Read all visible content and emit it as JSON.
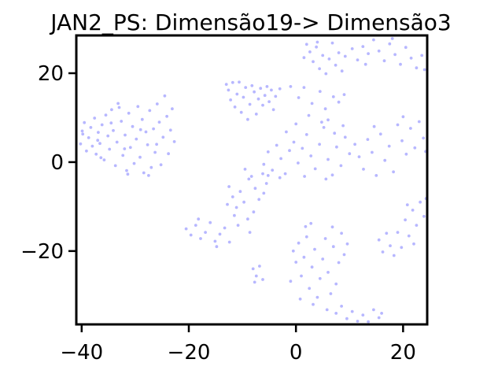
{
  "chart_data": {
    "type": "scatter",
    "title": "JAN2_PS: Dimensão19-> Dimensão3",
    "xlabel": "",
    "ylabel": "",
    "xlim": [
      -41,
      24.5
    ],
    "ylim": [
      -36.5,
      28.5
    ],
    "xticks": [
      -40,
      -20,
      0,
      20
    ],
    "xtick_labels": [
      "−40",
      "−20",
      "0",
      "20"
    ],
    "yticks": [
      -20,
      0,
      20
    ],
    "ytick_labels": [
      "−20",
      "0",
      "20"
    ],
    "grid": false,
    "legend": "none",
    "marker_color": "#7b7bff",
    "marker_opacity": 0.55,
    "series": [
      {
        "points": [
          [
            -40.2,
            4.1
          ],
          [
            -39.8,
            6.3
          ],
          [
            -39.5,
            8.9
          ],
          [
            -39.1,
            2.5
          ],
          [
            -38.7,
            5.5
          ],
          [
            -38.3,
            7.8
          ],
          [
            -38.0,
            3.6
          ],
          [
            -37.6,
            9.9
          ],
          [
            -37.3,
            1.8
          ],
          [
            -36.9,
            6.7
          ],
          [
            -36.6,
            4.2
          ],
          [
            -36.2,
            8.4
          ],
          [
            -35.8,
            0.5
          ],
          [
            -35.5,
            10.6
          ],
          [
            -35.1,
            5.9
          ],
          [
            -34.8,
            2.9
          ],
          [
            -34.4,
            11.8
          ],
          [
            -34.1,
            7.1
          ],
          [
            -33.7,
            -0.8
          ],
          [
            -33.4,
            4.5
          ],
          [
            -33.0,
            12.3
          ],
          [
            -32.6,
            9.2
          ],
          [
            -32.3,
            1.5
          ],
          [
            -31.9,
            6.1
          ],
          [
            -31.6,
            -1.9
          ],
          [
            -31.2,
            11.0
          ],
          [
            -30.9,
            3.3
          ],
          [
            -30.5,
            8.0
          ],
          [
            -30.2,
            -0.3
          ],
          [
            -29.8,
            5.2
          ],
          [
            -29.5,
            12.5
          ],
          [
            -29.1,
            1.1
          ],
          [
            -28.7,
            9.6
          ],
          [
            -28.4,
            -2.4
          ],
          [
            -28.0,
            6.8
          ],
          [
            -27.7,
            3.9
          ],
          [
            -27.3,
            11.6
          ],
          [
            -27.0,
            -1.2
          ],
          [
            -26.6,
            7.5
          ],
          [
            -26.3,
            2.2
          ],
          [
            -25.9,
            13.1
          ],
          [
            -25.5,
            9.0
          ],
          [
            -25.2,
            -0.6
          ],
          [
            -24.8,
            5.6
          ],
          [
            -24.5,
            14.9
          ],
          [
            -24.1,
            10.3
          ],
          [
            -23.8,
            1.9
          ],
          [
            -23.4,
            7.2
          ],
          [
            -23.1,
            12.0
          ],
          [
            -22.7,
            4.6
          ],
          [
            -39.9,
            7.0
          ],
          [
            -37.0,
            4.9
          ],
          [
            -34.5,
            8.8
          ],
          [
            -32.0,
            3.0
          ],
          [
            -29.0,
            7.3
          ],
          [
            -26.0,
            4.0
          ],
          [
            -31.4,
            -2.7
          ],
          [
            -27.5,
            -3.0
          ],
          [
            -36.4,
            1.0
          ],
          [
            -33.2,
            13.2
          ],
          [
            -13.0,
            17.5
          ],
          [
            -12.6,
            16.2
          ],
          [
            -12.2,
            14.0
          ],
          [
            -11.8,
            17.9
          ],
          [
            -11.4,
            12.4
          ],
          [
            -11.0,
            15.3
          ],
          [
            -10.6,
            18.0
          ],
          [
            -10.2,
            11.2
          ],
          [
            -9.8,
            14.6
          ],
          [
            -9.4,
            16.8
          ],
          [
            -9.0,
            9.6
          ],
          [
            -8.6,
            13.0
          ],
          [
            -8.2,
            17.2
          ],
          [
            -7.8,
            15.8
          ],
          [
            -7.4,
            10.8
          ],
          [
            -7.0,
            14.2
          ],
          [
            -6.6,
            16.6
          ],
          [
            -6.2,
            12.8
          ],
          [
            -5.8,
            15.0
          ],
          [
            -5.4,
            17.0
          ],
          [
            -5.0,
            13.6
          ],
          [
            -4.6,
            16.2
          ],
          [
            -4.2,
            11.8
          ],
          [
            -3.8,
            14.8
          ],
          [
            -3.0,
            16.5
          ],
          [
            -1.0,
            17.0
          ],
          [
            0.5,
            14.5
          ],
          [
            1.5,
            16.8
          ],
          [
            3.0,
            13.2
          ],
          [
            4.5,
            15.9
          ],
          [
            5.5,
            12.0
          ],
          [
            7.0,
            14.7
          ],
          [
            8.0,
            13.5
          ],
          [
            9.0,
            15.2
          ],
          [
            6.0,
            9.5
          ],
          [
            2.0,
            26.5
          ],
          [
            2.6,
            24.8
          ],
          [
            3.2,
            22.6
          ],
          [
            3.8,
            25.9
          ],
          [
            4.4,
            21.0
          ],
          [
            5.0,
            24.0
          ],
          [
            5.6,
            19.9
          ],
          [
            6.2,
            23.2
          ],
          [
            6.8,
            26.8
          ],
          [
            7.4,
            21.8
          ],
          [
            8.0,
            24.6
          ],
          [
            8.6,
            20.5
          ],
          [
            9.2,
            23.8
          ],
          [
            1.5,
            23.5
          ],
          [
            4.0,
            27.0
          ],
          [
            10.5,
            25.5
          ],
          [
            11.5,
            23.0
          ],
          [
            12.5,
            26.0
          ],
          [
            13.5,
            24.4
          ],
          [
            14.5,
            27.5
          ],
          [
            15.5,
            25.0
          ],
          [
            16.5,
            22.8
          ],
          [
            17.5,
            26.6
          ],
          [
            18.5,
            24.2
          ],
          [
            19.5,
            22.0
          ],
          [
            20.5,
            25.8
          ],
          [
            21.5,
            23.4
          ],
          [
            22.5,
            21.2
          ],
          [
            23.5,
            24.0
          ],
          [
            24.0,
            20.8
          ],
          [
            13.0,
            22.0
          ],
          [
            18.0,
            27.8
          ],
          [
            -6.0,
            -0.5
          ],
          [
            -5.2,
            2.3
          ],
          [
            -4.4,
            -1.8
          ],
          [
            -3.6,
            3.8
          ],
          [
            -2.8,
            0.8
          ],
          [
            -2.0,
            -2.6
          ],
          [
            -1.2,
            2.6
          ],
          [
            -0.4,
            4.5
          ],
          [
            0.4,
            -0.2
          ],
          [
            1.2,
            3.1
          ],
          [
            2.0,
            6.2
          ],
          [
            2.8,
            1.4
          ],
          [
            3.6,
            -1.5
          ],
          [
            4.4,
            4.0
          ],
          [
            5.2,
            7.8
          ],
          [
            6.0,
            0.6
          ],
          [
            6.8,
            -2.9
          ],
          [
            7.6,
            3.4
          ],
          [
            8.4,
            -0.8
          ],
          [
            9.2,
            5.6
          ],
          [
            10.0,
            1.9
          ],
          [
            0.0,
            8.6
          ],
          [
            2.4,
            10.5
          ],
          [
            4.8,
            9.0
          ],
          [
            -1.8,
            6.8
          ],
          [
            7.2,
            6.5
          ],
          [
            -3.0,
            -3.5
          ],
          [
            5.6,
            -3.8
          ],
          [
            1.6,
            -3.2
          ],
          [
            8.8,
            8.2
          ],
          [
            11.0,
            4.0
          ],
          [
            11.8,
            1.2
          ],
          [
            12.6,
            -1.6
          ],
          [
            13.4,
            5.1
          ],
          [
            14.2,
            2.2
          ],
          [
            15.0,
            -3.0
          ],
          [
            15.8,
            6.3
          ],
          [
            16.6,
            0.4
          ],
          [
            17.4,
            3.6
          ],
          [
            18.2,
            -2.2
          ],
          [
            19.0,
            8.4
          ],
          [
            19.8,
            4.8
          ],
          [
            20.6,
            1.8
          ],
          [
            21.4,
            7.6
          ],
          [
            22.2,
            3.2
          ],
          [
            23.0,
            9.1
          ],
          [
            23.8,
            5.4
          ],
          [
            24.2,
            2.4
          ],
          [
            20.0,
            10.2
          ],
          [
            14.6,
            8.0
          ],
          [
            -12.5,
            -5.5
          ],
          [
            -11.8,
            -7.8
          ],
          [
            -11.1,
            -10.2
          ],
          [
            -10.4,
            -6.6
          ],
          [
            -9.7,
            -9.0
          ],
          [
            -9.0,
            -12.8
          ],
          [
            -8.3,
            -3.2
          ],
          [
            -7.6,
            -5.9
          ],
          [
            -6.9,
            -8.4
          ],
          [
            -6.2,
            -2.6
          ],
          [
            -5.5,
            -4.8
          ],
          [
            -9.5,
            -1.6
          ],
          [
            -8.8,
            -3.8
          ],
          [
            -10.8,
            -14.2
          ],
          [
            -8.6,
            -15.8
          ],
          [
            -11.5,
            -12.0
          ],
          [
            -7.9,
            -11.2
          ],
          [
            -6.0,
            -7.0
          ],
          [
            -12.8,
            -9.5
          ],
          [
            -5.2,
            -3.0
          ],
          [
            -20.5,
            -15.0
          ],
          [
            -19.6,
            -16.4
          ],
          [
            -18.7,
            -14.2
          ],
          [
            -17.8,
            -17.2
          ],
          [
            -16.9,
            -15.8
          ],
          [
            -16.0,
            -13.6
          ],
          [
            -15.1,
            -17.8
          ],
          [
            -14.2,
            -16.2
          ],
          [
            -13.3,
            -14.8
          ],
          [
            -12.4,
            -18.0
          ],
          [
            -18.2,
            -12.8
          ],
          [
            -14.8,
            -19.0
          ],
          [
            -8.0,
            -24.0
          ],
          [
            -7.4,
            -25.6
          ],
          [
            -6.8,
            -23.4
          ],
          [
            -6.2,
            -26.4
          ],
          [
            -7.7,
            -27.0
          ],
          [
            -0.5,
            -20.0
          ],
          [
            0.0,
            -22.5
          ],
          [
            0.5,
            -18.2
          ],
          [
            1.0,
            -25.6
          ],
          [
            1.5,
            -21.4
          ],
          [
            2.0,
            -16.8
          ],
          [
            2.5,
            -28.4
          ],
          [
            3.0,
            -23.6
          ],
          [
            3.5,
            -19.6
          ],
          [
            4.0,
            -30.4
          ],
          [
            4.5,
            -26.2
          ],
          [
            5.0,
            -21.8
          ],
          [
            5.5,
            -17.2
          ],
          [
            6.0,
            -24.8
          ],
          [
            6.5,
            -29.6
          ],
          [
            7.0,
            -19.0
          ],
          [
            7.5,
            -27.4
          ],
          [
            8.0,
            -22.6
          ],
          [
            8.5,
            -16.0
          ],
          [
            9.0,
            -20.8
          ],
          [
            1.8,
            -14.5
          ],
          [
            3.2,
            -32.0
          ],
          [
            5.8,
            -33.2
          ],
          [
            -1.0,
            -26.8
          ],
          [
            0.8,
            -30.8
          ],
          [
            2.8,
            -13.8
          ],
          [
            6.8,
            -14.6
          ],
          [
            9.6,
            -18.4
          ],
          [
            7.5,
            -34.0
          ],
          [
            8.5,
            -32.4
          ],
          [
            9.5,
            -35.2
          ],
          [
            10.5,
            -33.6
          ],
          [
            11.5,
            -35.8
          ],
          [
            12.5,
            -34.4
          ],
          [
            13.5,
            -35.9
          ],
          [
            14.5,
            -33.2
          ],
          [
            15.5,
            -35.0
          ],
          [
            16.0,
            -34.0
          ],
          [
            15.5,
            -17.5
          ],
          [
            16.2,
            -20.2
          ],
          [
            16.9,
            -16.0
          ],
          [
            17.6,
            -18.8
          ],
          [
            18.3,
            -21.0
          ],
          [
            19.0,
            -15.8
          ],
          [
            19.7,
            -19.2
          ],
          [
            20.4,
            -13.0
          ],
          [
            21.1,
            -16.6
          ],
          [
            21.8,
            -10.8
          ],
          [
            22.5,
            -14.2
          ],
          [
            23.2,
            -9.0
          ],
          [
            23.9,
            -12.2
          ],
          [
            24.3,
            -8.2
          ],
          [
            20.8,
            -9.6
          ],
          [
            22.0,
            -18.4
          ]
        ]
      }
    ]
  }
}
